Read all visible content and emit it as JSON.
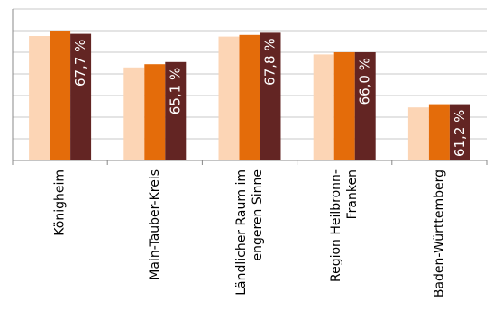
{
  "chart_data": {
    "type": "bar",
    "categories": [
      [
        "Königheim"
      ],
      [
        "Main-Tauber-Kreis"
      ],
      [
        "Ländlicher Raum im",
        "engeren Sinne"
      ],
      [
        "Region Heilbronn-",
        "Franken"
      ],
      [
        "Baden-Württemberg"
      ]
    ],
    "series": [
      {
        "color": "#fcd5b5",
        "values": [
          67.5,
          64.6,
          67.45,
          65.8,
          60.9
        ]
      },
      {
        "color": "#e46c0a",
        "values": [
          68.0,
          64.9,
          67.6,
          66.0,
          61.2
        ]
      },
      {
        "color": "#632523",
        "values": [
          67.7,
          65.1,
          67.8,
          66.0,
          61.2
        ],
        "value_labels": [
          "67,7 %",
          "65,1 %",
          "67,8 %",
          "66,0 %",
          "61,2 %"
        ]
      }
    ],
    "ylim": [
      56,
      70
    ],
    "yticks": [
      56,
      58,
      60,
      62,
      64,
      66,
      68,
      70
    ],
    "grid": true
  }
}
